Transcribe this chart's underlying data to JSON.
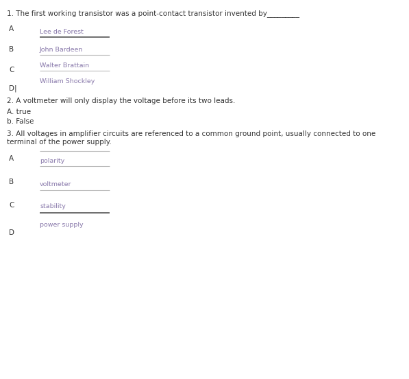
{
  "bg_color": "#ffffff",
  "q1": {
    "question": "1. The first working transistor was a point-contact transistor invented by_________",
    "label_A": "A",
    "label_B": "B",
    "label_C": "C",
    "label_D": "D|",
    "ans_A": "Lee de Forest",
    "ans_B": "John Bardeen",
    "ans_C": "Walter Brattain",
    "ans_D": "William Shockley",
    "ans_color": "#8878aa"
  },
  "q2": {
    "question": "2. A voltmeter will only display the voltage before its two leads.",
    "ans_A": "A. true",
    "ans_B": "b. False"
  },
  "q3": {
    "question": "3. All voltages in amplifier circuits are referenced to a common ground point, usually connected to one\nterminal of the power supply.",
    "label_A": "A",
    "label_B": "B",
    "label_C": "C",
    "label_D": "D",
    "ans_A": "polarity",
    "ans_B": "voltmeter",
    "ans_C": "stability",
    "ans_D": "power supply",
    "ans_color": "#8878aa"
  },
  "line_color_light": "#bbbbbb",
  "line_color_dark": "#555555",
  "text_color": "#333333",
  "font_size_q": 7.5,
  "font_size_ans": 6.8,
  "font_size_label": 7.5
}
